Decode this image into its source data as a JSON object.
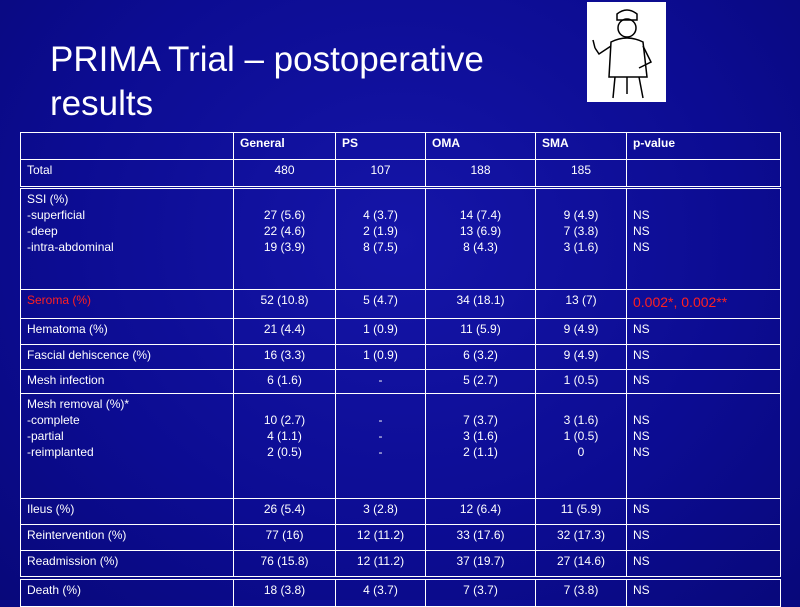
{
  "title": "PRIMA Trial – postoperative results",
  "table": {
    "header": [
      "",
      "General",
      "PS",
      "OMA",
      "SMA",
      "p-value"
    ],
    "rows": [
      [
        [
          "Total"
        ],
        [
          "480"
        ],
        [
          "107"
        ],
        [
          "188"
        ],
        [
          "185"
        ],
        []
      ],
      [
        [
          "SSI (%)",
          "-superficial",
          "-deep",
          "-intra-abdominal"
        ],
        [
          "27 (5.6)",
          "22 (4.6)",
          "19 (3.9)"
        ],
        [
          "4 (3.7)",
          "2 (1.9)",
          "8 (7.5)"
        ],
        [
          "14 (7.4)",
          "13 (6.9)",
          "8 (4.3)"
        ],
        [
          "9 (4.9)",
          "7 (3.8)",
          "3 (1.6)"
        ],
        [
          "NS",
          "NS",
          "NS"
        ]
      ],
      [
        [
          "Seroma (%)"
        ],
        [
          "52 (10.8)"
        ],
        [
          "5 (4.7)"
        ],
        [
          "34 (18.1)"
        ],
        [
          "13 (7)"
        ],
        [
          "0.002*, 0.002**"
        ]
      ],
      [
        [
          "Hematoma (%)"
        ],
        [
          "21 (4.4)"
        ],
        [
          "1 (0.9)"
        ],
        [
          "11 (5.9)"
        ],
        [
          "9 (4.9)"
        ],
        [
          "NS"
        ]
      ],
      [
        [
          "Fascial dehiscence (%)"
        ],
        [
          "16 (3.3)"
        ],
        [
          "1 (0.9)"
        ],
        [
          "6 (3.2)"
        ],
        [
          "9 (4.9)"
        ],
        [
          "NS"
        ]
      ],
      [
        [
          "Mesh infection"
        ],
        [
          "6 (1.6)"
        ],
        [
          "-"
        ],
        [
          "5 (2.7)"
        ],
        [
          "1 (0.5)"
        ],
        [
          "NS"
        ]
      ],
      [
        [
          "Mesh removal (%)*",
          "-complete",
          "-partial",
          "-reimplanted"
        ],
        [
          "10 (2.7)",
          "4 (1.1)",
          "2 (0.5)"
        ],
        [
          "-",
          "-",
          "-"
        ],
        [
          "7 (3.7)",
          "3 (1.6)",
          "2 (1.1)"
        ],
        [
          "3 (1.6)",
          "1 (0.5)",
          "0"
        ],
        [
          "NS",
          "NS",
          "NS"
        ]
      ],
      [
        [
          "Ileus (%)"
        ],
        [
          "26 (5.4)"
        ],
        [
          "3 (2.8)"
        ],
        [
          "12 (6.4)"
        ],
        [
          "11 (5.9)"
        ],
        [
          "NS"
        ]
      ],
      [
        [
          "Reintervention (%)"
        ],
        [
          "77 (16)"
        ],
        [
          "12 (11.2)"
        ],
        [
          "33 (17.6)"
        ],
        [
          "32 (17.3)"
        ],
        [
          "NS"
        ]
      ],
      [
        [
          "Readmission (%)"
        ],
        [
          "76 (15.8)"
        ],
        [
          "12 (11.2)"
        ],
        [
          "37 (19.7)"
        ],
        [
          "27 (14.6)"
        ],
        [
          "NS"
        ]
      ],
      [
        [
          "Death (%)"
        ],
        [
          "18 (3.8)"
        ],
        [
          "4 (3.7)"
        ],
        [
          "7 (3.7)"
        ],
        [
          "7 (3.8)"
        ],
        [
          "NS"
        ]
      ]
    ]
  }
}
